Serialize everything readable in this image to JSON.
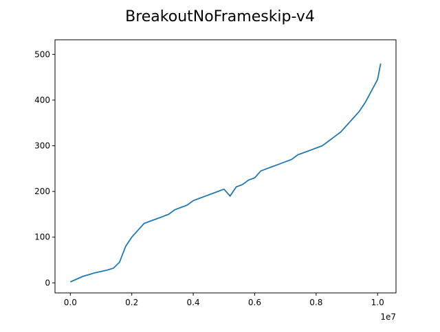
{
  "chart_data": {
    "type": "line",
    "title": "BreakoutNoFrameskip-v4",
    "xlabel": "",
    "ylabel": "",
    "x_multiplier_label": "1e7",
    "xlim": [
      -0.05,
      1.06
    ],
    "ylim": [
      -22,
      532
    ],
    "x_scale": 10000000,
    "xticks": [
      0.0,
      0.2,
      0.4,
      0.6,
      0.8,
      1.0
    ],
    "xtick_labels": [
      "0.0",
      "0.2",
      "0.4",
      "0.6",
      "0.8",
      "1.0"
    ],
    "yticks": [
      0,
      100,
      200,
      300,
      400,
      500
    ],
    "ytick_labels": [
      "0",
      "100",
      "200",
      "300",
      "400",
      "500"
    ],
    "grid": false,
    "legend": "none",
    "line_color": "#1f77b4",
    "series": [
      {
        "x": [
          0.0,
          0.02,
          0.04,
          0.06,
          0.08,
          0.1,
          0.12,
          0.14,
          0.16,
          0.18,
          0.2,
          0.22,
          0.24,
          0.26,
          0.28,
          0.3,
          0.32,
          0.34,
          0.36,
          0.38,
          0.4,
          0.42,
          0.44,
          0.46,
          0.48,
          0.5,
          0.52,
          0.54,
          0.56,
          0.58,
          0.6,
          0.62,
          0.64,
          0.66,
          0.68,
          0.7,
          0.72,
          0.74,
          0.76,
          0.78,
          0.8,
          0.82,
          0.84,
          0.86,
          0.88,
          0.9,
          0.92,
          0.94,
          0.96,
          0.98,
          1.0,
          1.01
        ],
        "y": [
          2,
          8,
          14,
          18,
          22,
          25,
          28,
          32,
          45,
          80,
          100,
          115,
          130,
          135,
          140,
          145,
          150,
          160,
          165,
          170,
          180,
          185,
          190,
          195,
          200,
          205,
          190,
          210,
          215,
          225,
          230,
          245,
          250,
          255,
          260,
          265,
          270,
          280,
          285,
          290,
          295,
          300,
          310,
          320,
          330,
          345,
          360,
          375,
          395,
          420,
          445,
          480
        ]
      }
    ]
  }
}
